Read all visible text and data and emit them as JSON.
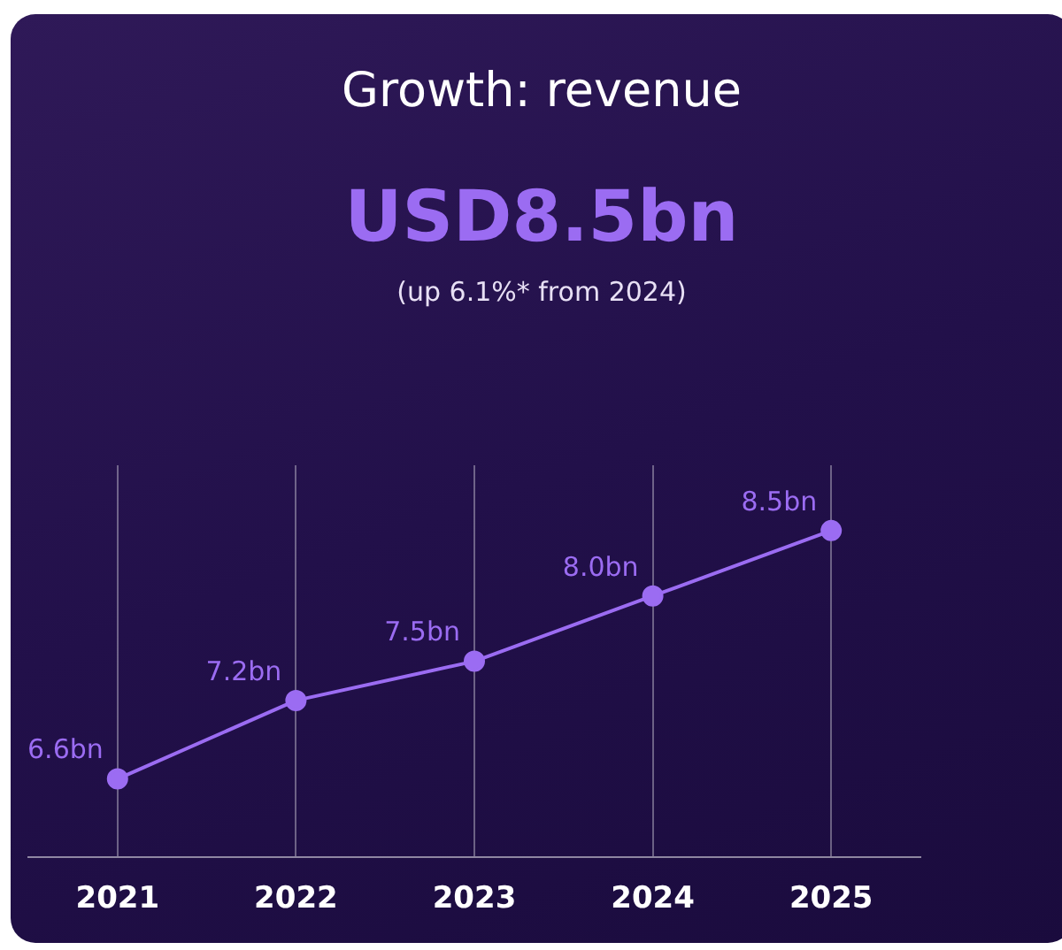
{
  "chart_data": {
    "type": "line",
    "title": "Growth: revenue",
    "subtitle": "USD8.5bn",
    "annotations": [
      "(up 6.1%* from 2024)"
    ],
    "categories": [
      "2021",
      "2022",
      "2023",
      "2024",
      "2025"
    ],
    "series": [
      {
        "color": "#9b6cf2",
        "values": [
          6.6,
          7.2,
          7.5,
          8.0,
          8.5
        ],
        "value_labels": [
          "6.6bn",
          "7.2bn",
          "7.5bn",
          "8.0bn",
          "8.5bn"
        ]
      }
    ],
    "grid": "x",
    "tick_labels": "x",
    "marker": "circle",
    "line_style": "solid",
    "legend": false
  }
}
